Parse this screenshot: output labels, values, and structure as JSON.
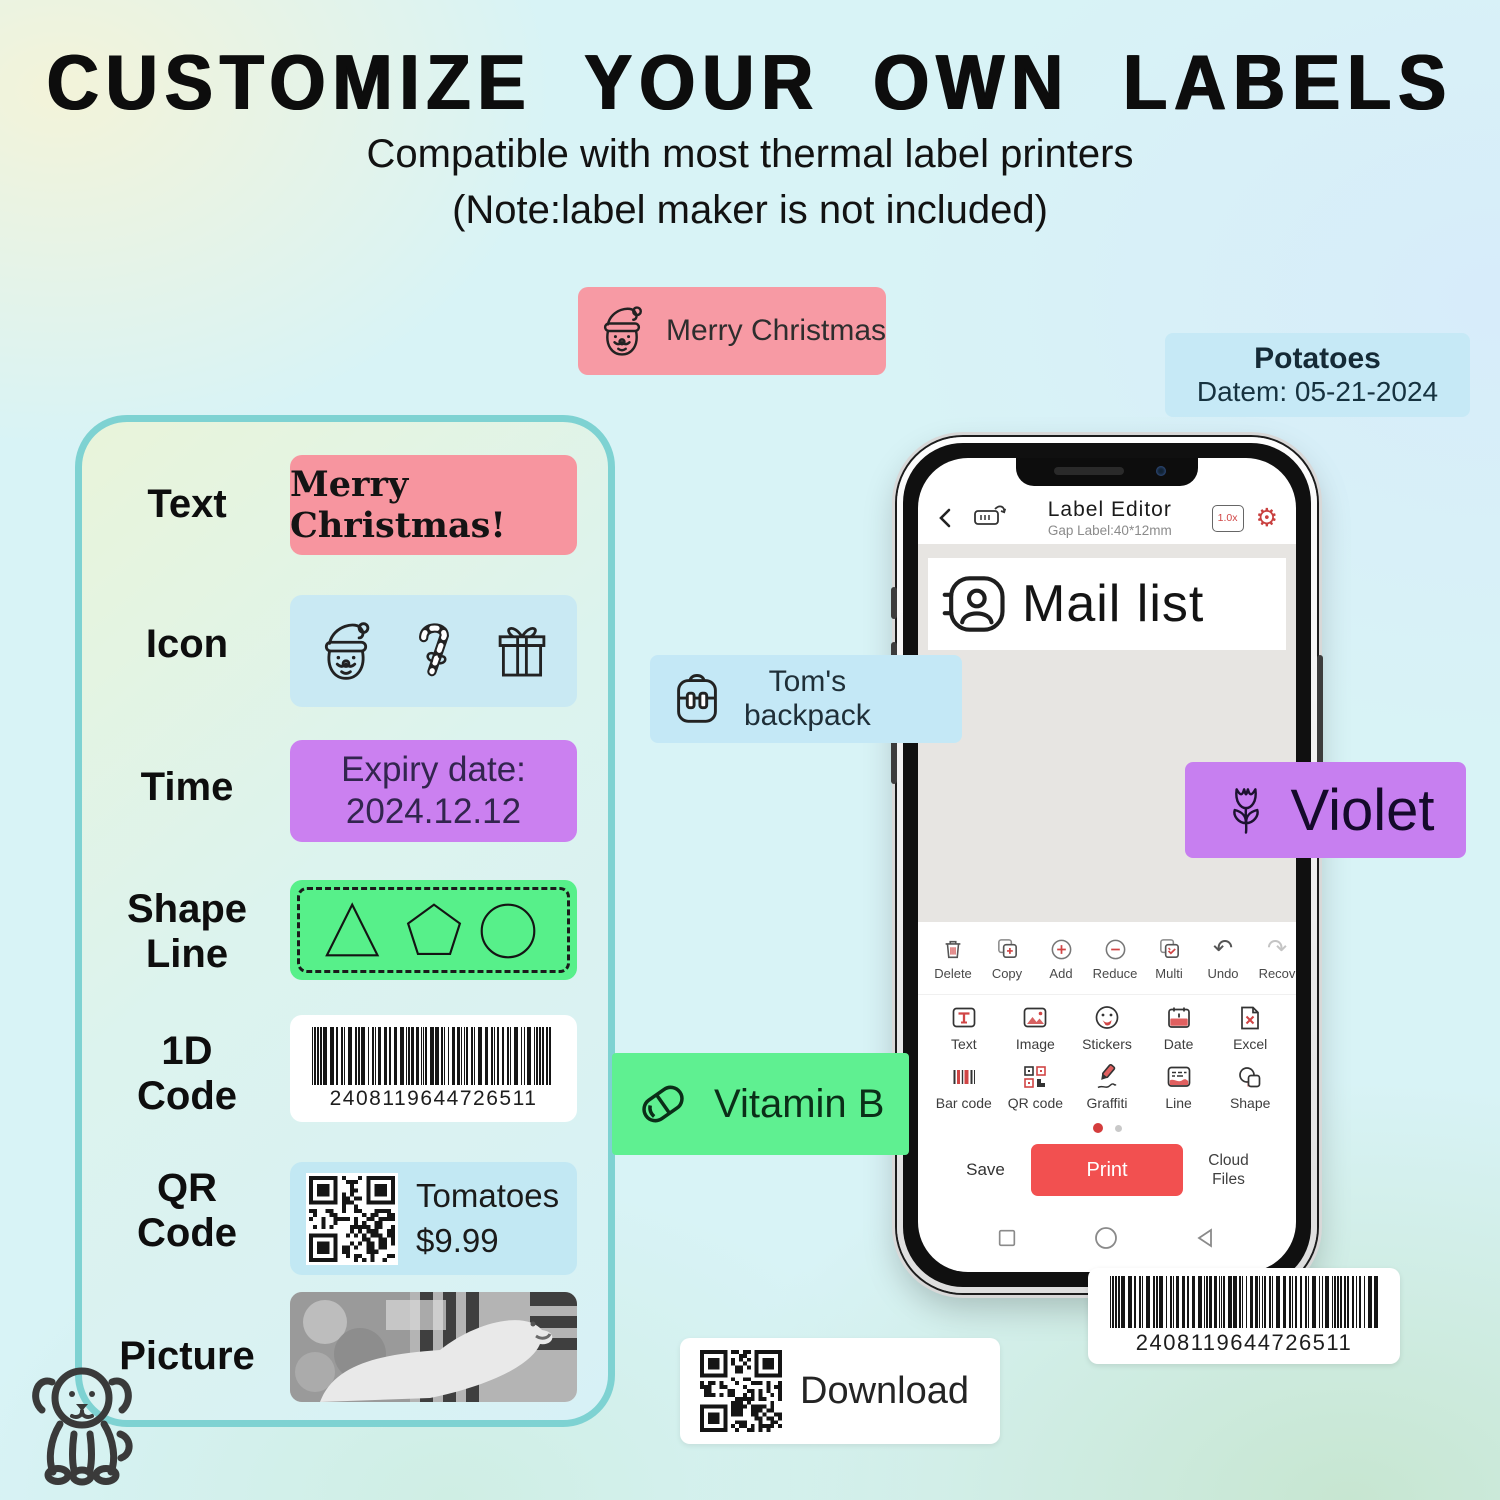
{
  "header": {
    "title": "CUSTOMIZE YOUR OWN LABELS",
    "subtitle_line1": "Compatible with most thermal label printers",
    "subtitle_line2": "(Note:label maker is not included)"
  },
  "stickers": {
    "merry_christmas": {
      "text": "Merry Christmas",
      "icon": "santa-icon",
      "bg": "#f79aa4"
    },
    "potatoes": {
      "name": "Potatoes",
      "date": "Datem: 05-21-2024",
      "bg": "#c6e9f6"
    },
    "toms_backpack": {
      "line1": "Tom's",
      "line2": "backpack",
      "icon": "backpack-icon",
      "bg": "#c4e8f6"
    },
    "violet": {
      "text": "Violet",
      "icon": "tulip-icon",
      "bg": "#c77ff0"
    },
    "vitamin_b": {
      "text": "Vitamin B",
      "icon": "pill-icon",
      "bg": "#5ff091"
    },
    "download": {
      "text": "Download",
      "icon": "qr-code",
      "bg": "#ffffff"
    },
    "barcode_bottom": {
      "digits": "2408119644726511"
    }
  },
  "panel": {
    "rows": [
      {
        "label": "Text",
        "content": "Merry Christmas!",
        "bg": "#f7959f"
      },
      {
        "label": "Icon",
        "icons": [
          "santa-icon",
          "candy-cane-icon",
          "gift-icon"
        ],
        "bg": "#c9e9f3"
      },
      {
        "label": "Time",
        "line1": "Expiry date:",
        "line2": "2024.12.12",
        "bg": "#cb80f0"
      },
      {
        "label": "Shape\nLine",
        "shapes": [
          "triangle",
          "pentagon",
          "circle"
        ],
        "bg": "#57f08a"
      },
      {
        "label": "1D\nCode",
        "digits": "2408119644726511",
        "bg": "#ffffff"
      },
      {
        "label": "QR\nCode",
        "line1": "Tomatoes",
        "line2": "$9.99",
        "bg": "#c2e8f3"
      },
      {
        "label": "Picture",
        "bg": "#ffffff"
      }
    ]
  },
  "phone": {
    "header": {
      "title": "Label Editor",
      "subtitle": "Gap Label:40*12mm",
      "scale_badge": "1.0x"
    },
    "canvas": {
      "label_text": "Mail list",
      "label_icon": "contact-icon"
    },
    "toolbar": {
      "items": [
        "Delete",
        "Copy",
        "Add",
        "Reduce",
        "Multi",
        "Undo",
        "Recov"
      ]
    },
    "tools": {
      "items": [
        "Text",
        "Image",
        "Stickers",
        "Date",
        "Excel",
        "Bar code",
        "QR code",
        "Graffiti",
        "Line",
        "Shape"
      ]
    },
    "actions": {
      "save": "Save",
      "print": "Print",
      "cloud_line1": "Cloud",
      "cloud_line2": "Files"
    }
  },
  "colors": {
    "accent_red": "#f25050",
    "panel_border": "#7ed2d2",
    "chip_pink": "#f79aa4",
    "chip_blue": "#c6e9f6",
    "chip_purple": "#c77ff0",
    "chip_green": "#5ff091"
  }
}
